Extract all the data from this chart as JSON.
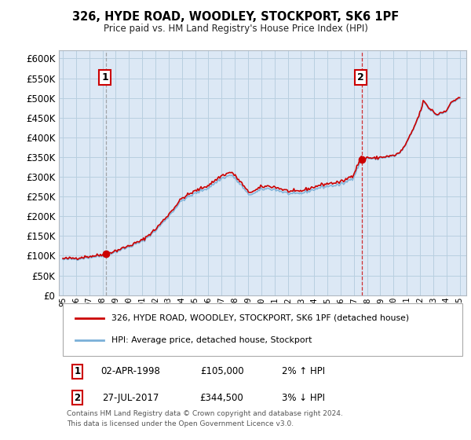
{
  "title": "326, HYDE ROAD, WOODLEY, STOCKPORT, SK6 1PF",
  "subtitle": "Price paid vs. HM Land Registry's House Price Index (HPI)",
  "legend_line1": "326, HYDE ROAD, WOODLEY, STOCKPORT, SK6 1PF (detached house)",
  "legend_line2": "HPI: Average price, detached house, Stockport",
  "annotation1": {
    "num": "1",
    "date": "02-APR-1998",
    "price": "£105,000",
    "pct": "2% ↑ HPI"
  },
  "annotation2": {
    "num": "2",
    "date": "27-JUL-2017",
    "price": "£344,500",
    "pct": "3% ↓ HPI"
  },
  "footer": "Contains HM Land Registry data © Crown copyright and database right 2024.\nThis data is licensed under the Open Government Licence v3.0.",
  "hpi_color": "#7ab0d8",
  "price_color": "#cc0000",
  "dashed1_color": "#888888",
  "dashed2_color": "#cc0000",
  "ylim": [
    0,
    620000
  ],
  "yticks": [
    0,
    50000,
    100000,
    150000,
    200000,
    250000,
    300000,
    350000,
    400000,
    450000,
    500000,
    550000,
    600000
  ],
  "background": "#dce8f5",
  "plot_bg": "#dce8f5",
  "grid_color": "#b8cfe0",
  "sale1_x": 1998.25,
  "sale1_y": 105000,
  "sale2_x": 2017.58,
  "sale2_y": 344500,
  "xmin": 1994.7,
  "xmax": 2025.5
}
